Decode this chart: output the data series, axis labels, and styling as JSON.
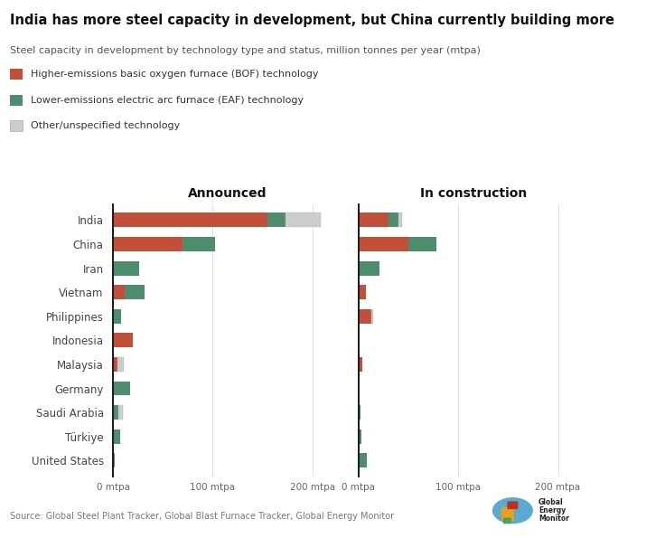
{
  "title": "India has more steel capacity in development, but China currently building more",
  "subtitle": "Steel capacity in development by technology type and status, million tonnes per year (mtpa)",
  "countries": [
    "India",
    "China",
    "Iran",
    "Vietnam",
    "Philippines",
    "Indonesia",
    "Malaysia",
    "Germany",
    "Saudi Arabia",
    "Türkiye",
    "United States"
  ],
  "announced": {
    "BOF": [
      155,
      70,
      0,
      12,
      0,
      20,
      4,
      0,
      0,
      0,
      0
    ],
    "EAF": [
      18,
      32,
      26,
      20,
      8,
      0,
      0,
      17,
      5,
      7,
      2
    ],
    "Other": [
      35,
      0,
      0,
      0,
      0,
      0,
      7,
      0,
      5,
      0,
      0
    ]
  },
  "construction": {
    "BOF": [
      30,
      50,
      0,
      7,
      13,
      0,
      4,
      0,
      0,
      0,
      0
    ],
    "EAF": [
      10,
      28,
      21,
      0,
      0,
      0,
      0,
      0,
      2,
      3,
      8
    ],
    "Other": [
      4,
      0,
      0,
      0,
      2,
      0,
      0,
      0,
      0,
      0,
      0
    ]
  },
  "colors": {
    "BOF": "#c0503a",
    "EAF": "#4e8c6e",
    "Other": "#cccccc"
  },
  "legend_labels": [
    "Higher-emissions basic oxygen furnace (BOF) technology",
    "Lower-emissions electric arc furnace (EAF) technology",
    "Other/unspecified technology"
  ],
  "source": "Source: Global Steel Plant Tracker, Global Blast Furnace Tracker, Global Energy Monitor",
  "bg_color": "#ffffff",
  "bar_height": 0.6,
  "xlim": 230,
  "xticks": [
    0,
    100,
    200
  ]
}
